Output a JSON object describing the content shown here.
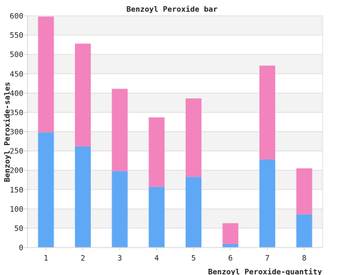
{
  "chart_data": {
    "type": "bar",
    "stacked": true,
    "title": "Benzoyl Peroxide bar",
    "xlabel": "Benzoyl Peroxide-quantity",
    "ylabel": "Benzoyl Peroxide-sales",
    "categories": [
      "1",
      "2",
      "3",
      "4",
      "5",
      "6",
      "7",
      "8"
    ],
    "series": [
      {
        "values": [
          298,
          262,
          198,
          157,
          183,
          9,
          228,
          86
        ]
      },
      {
        "values": [
          300,
          266,
          213,
          180,
          203,
          54,
          243,
          119
        ]
      }
    ],
    "ylim": [
      0,
      600
    ],
    "yticks": [
      0,
      50,
      100,
      150,
      200,
      250,
      300,
      350,
      400,
      450,
      500,
      550,
      600
    ],
    "grid": true,
    "legend": "none"
  },
  "colors": {
    "series": [
      "#5fa8f5",
      "#f283bd"
    ],
    "band_light": "#f3f3f3",
    "band_white": "#ffffff",
    "grid": "#dcdcdc",
    "axis": "#cfcfcf",
    "text": "#222222"
  }
}
